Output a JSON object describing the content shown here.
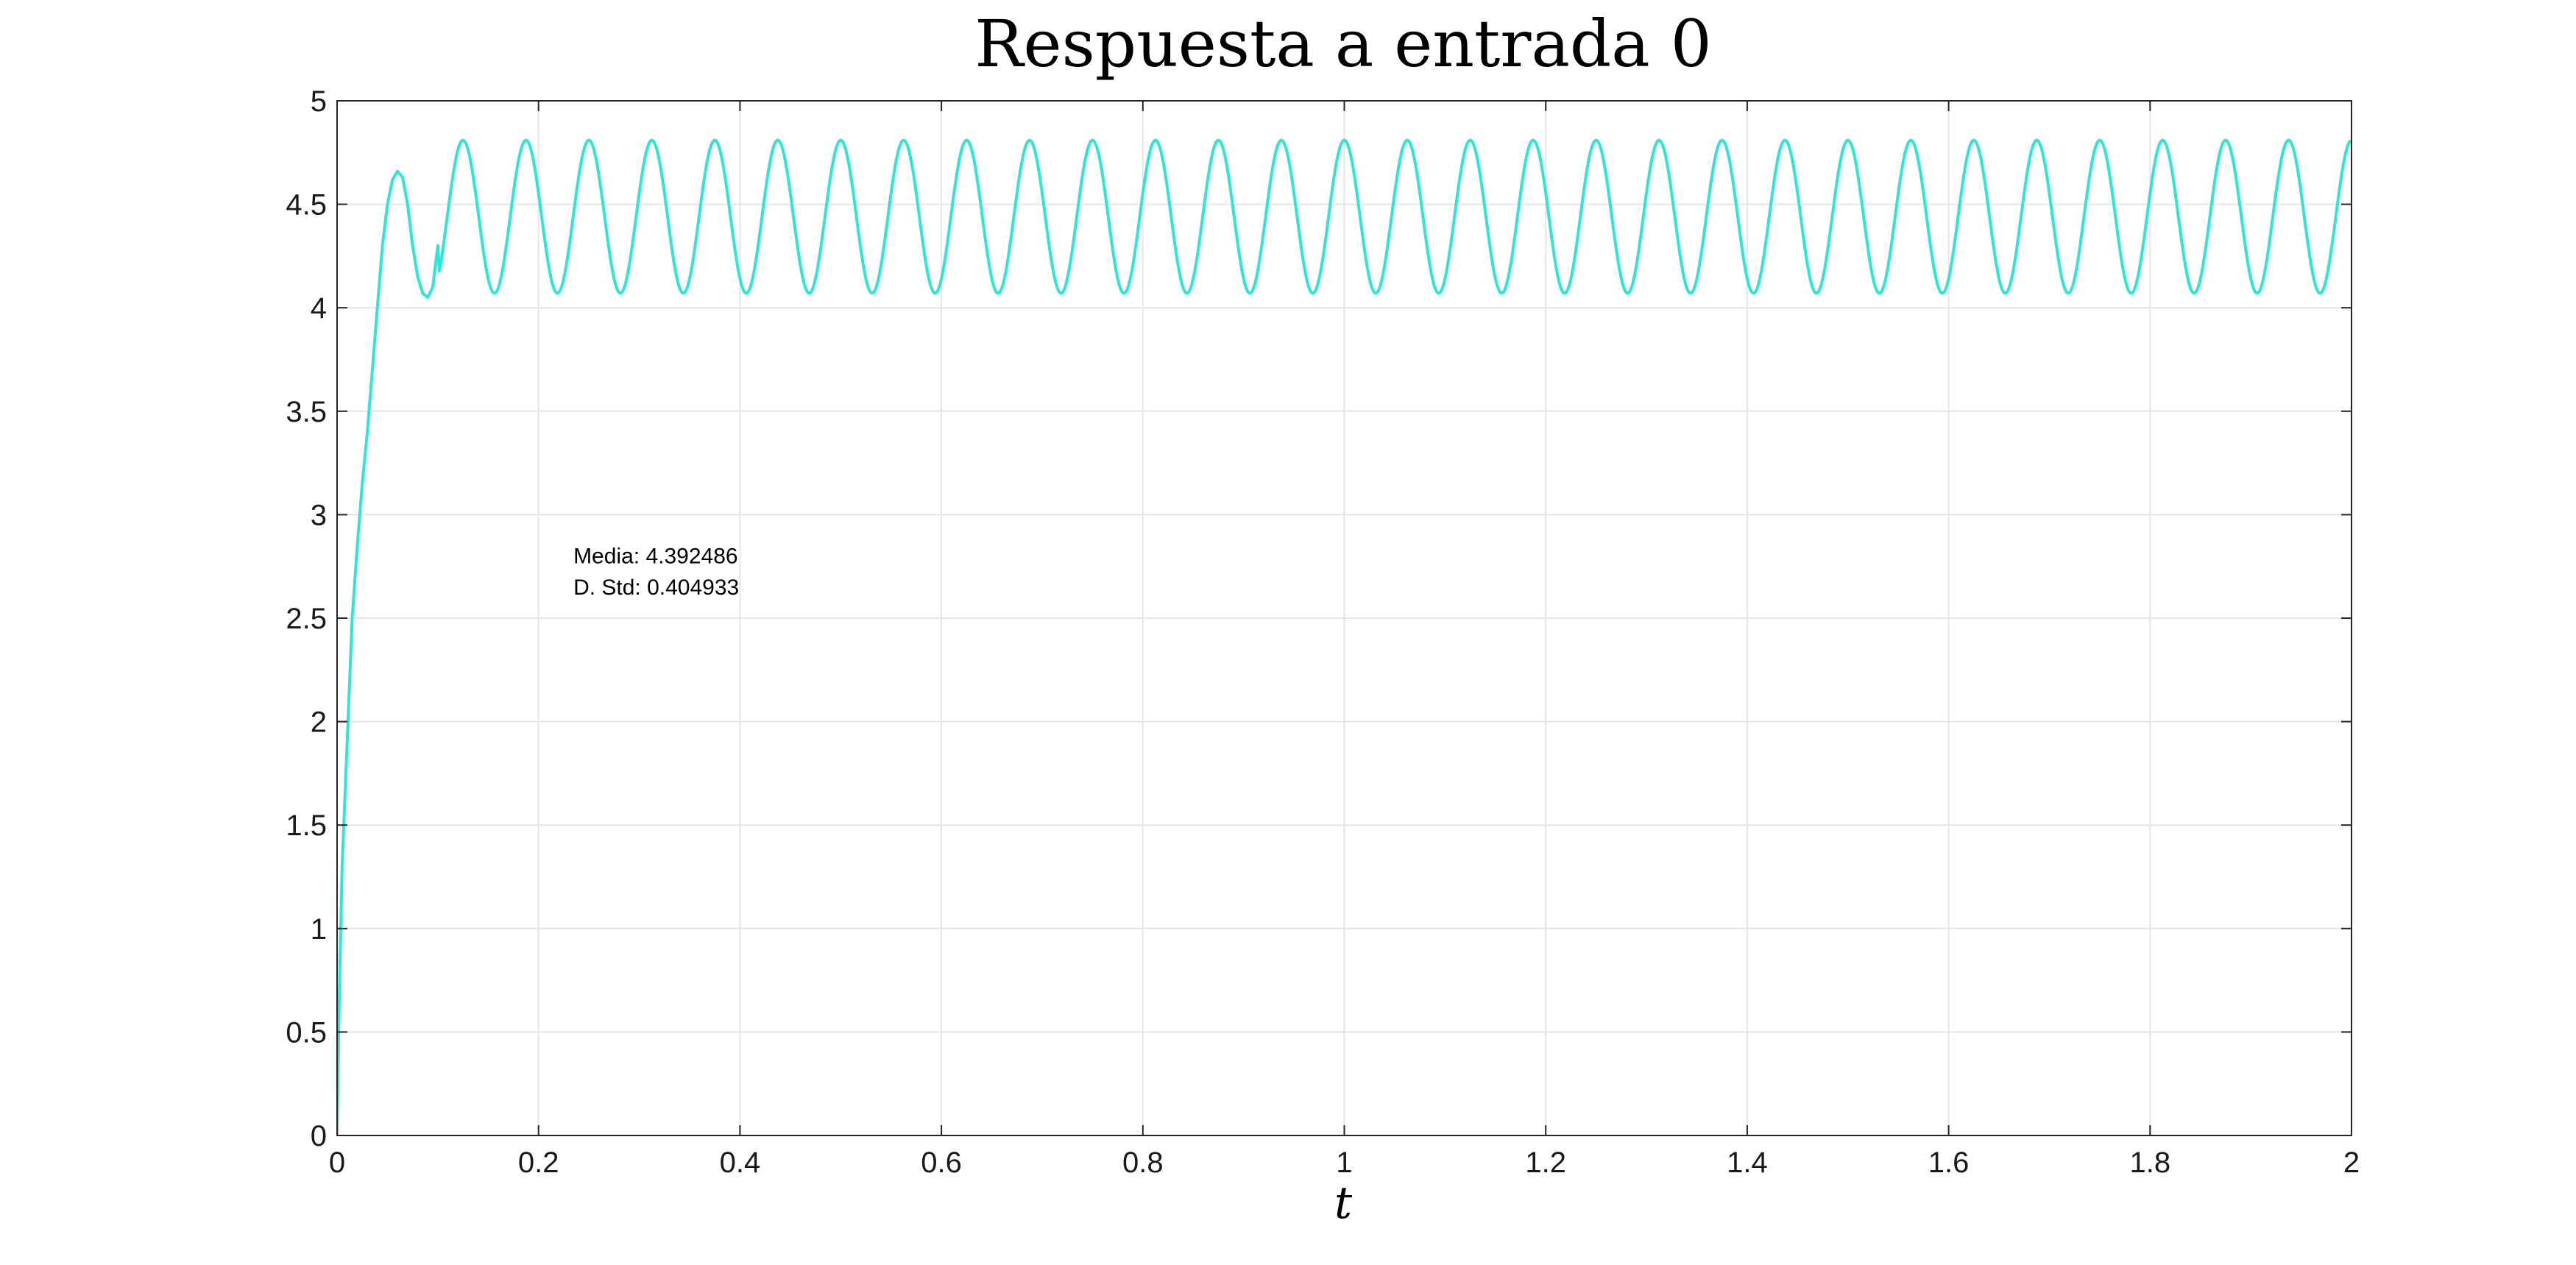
{
  "chart_data": {
    "type": "line",
    "title": "Respuesta a entrada 0",
    "xlabel": "t",
    "ylabel": "",
    "xlim": [
      0,
      2
    ],
    "ylim": [
      0,
      5
    ],
    "x_ticks": [
      0,
      0.2,
      0.4,
      0.6,
      0.8,
      1,
      1.2,
      1.4,
      1.6,
      1.8,
      2
    ],
    "x_tick_labels": [
      "0",
      "0.2",
      "0.4",
      "0.6",
      "0.8",
      "1",
      "1.2",
      "1.4",
      "1.6",
      "1.8",
      "2"
    ],
    "y_ticks": [
      0,
      0.5,
      1,
      1.5,
      2,
      2.5,
      3,
      3.5,
      4,
      4.5,
      5
    ],
    "y_tick_labels": [
      "0",
      "0.5",
      "1",
      "1.5",
      "2",
      "2.5",
      "3",
      "3.5",
      "4",
      "4.5",
      "5"
    ],
    "grid": true,
    "legend": "none",
    "series": [
      {
        "color": "#2ee6d6",
        "description": "damped rise then steady sinusoidal oscillation between ~4.07 and ~4.81, period ~0.0625",
        "x": [
          0,
          0.002,
          0.005,
          0.01,
          0.015,
          0.02,
          0.025,
          0.03,
          0.035,
          0.04,
          0.045,
          0.05,
          0.055,
          0.06,
          0.065,
          0.07,
          0.075,
          0.08,
          0.085,
          0.09,
          0.095,
          0.1
        ],
        "y": [
          0,
          0.62,
          1.3,
          1.9,
          2.5,
          2.85,
          3.15,
          3.4,
          3.7,
          4.0,
          4.3,
          4.5,
          4.62,
          4.66,
          4.63,
          4.5,
          4.3,
          4.15,
          4.07,
          4.05,
          4.1,
          4.3
        ]
      }
    ],
    "steady_state": {
      "start": 0.1,
      "mean": 4.44,
      "amplitude": 0.37,
      "period": 0.0625,
      "peak_phase_x": 0.125
    },
    "annotations": [
      {
        "text": "Media: 4.392486",
        "x": 0.22,
        "y": 2.8
      },
      {
        "text": "D. Std: 0.404933",
        "x": 0.22,
        "y": 2.65
      }
    ]
  }
}
